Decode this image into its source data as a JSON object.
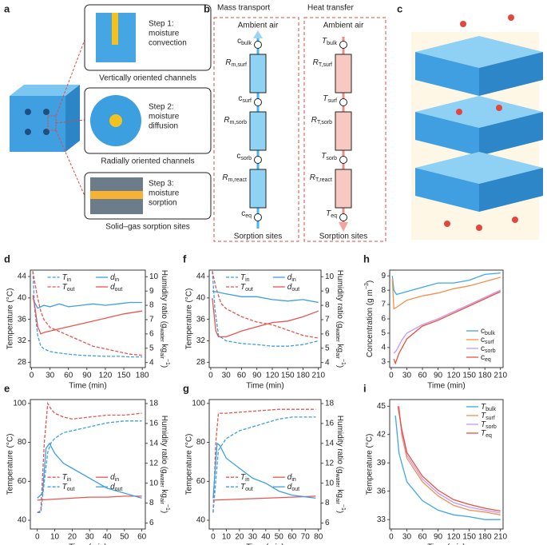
{
  "panels": [
    "a",
    "b",
    "c"
  ],
  "diagram_a": {
    "steps": [
      {
        "lines": [
          "Step 1:",
          "moisture",
          "convection"
        ],
        "caption": "Vertically oriented channels"
      },
      {
        "lines": [
          "Step 2:",
          "moisture",
          "diffusion"
        ],
        "caption": "Radially oriented channels"
      },
      {
        "lines": [
          "Step 3:",
          "moisture",
          "sorption"
        ],
        "caption": "Solid–gas sorption sites"
      }
    ]
  },
  "diagram_b": {
    "columns": [
      {
        "title": "Mass transport",
        "top": "Ambient air",
        "bottom": "Sorption sites",
        "nodes": [
          {
            "s": "c",
            "sub": "bulk"
          },
          {
            "s": "R",
            "sub": "m,surf"
          },
          {
            "s": "c",
            "sub": "surf"
          },
          {
            "s": "R",
            "sub": "m,sorb"
          },
          {
            "s": "c",
            "sub": "sorb"
          },
          {
            "s": "R",
            "sub": "m,react"
          },
          {
            "s": "c",
            "sub": "eq"
          }
        ]
      },
      {
        "title": "Heat transfer",
        "top": "Ambient air",
        "bottom": "Sorption sites",
        "nodes": [
          {
            "s": "T",
            "sub": "bulk"
          },
          {
            "s": "R",
            "sub": "T,surf"
          },
          {
            "s": "T",
            "sub": "surf"
          },
          {
            "s": "R",
            "sub": "T,sorb"
          },
          {
            "s": "T",
            "sub": "sorb"
          },
          {
            "s": "R",
            "sub": "T,react"
          },
          {
            "s": "T",
            "sub": "eq"
          }
        ]
      }
    ]
  },
  "chart_data": [
    {
      "panel": "d",
      "type": "line",
      "xlabel": "Time (min)",
      "ylabel": "Temperature (°C)",
      "y2label": [
        {
          "t": "Humidity ratio (g"
        },
        {
          "t": "water",
          "sub": true
        },
        {
          "t": " kg"
        },
        {
          "t": "air",
          "sub": true
        },
        {
          "t": "−1",
          "sup": true
        },
        {
          "t": ")"
        }
      ],
      "xlim": [
        -2,
        185
      ],
      "xticks": [
        0,
        30,
        60,
        90,
        120,
        150,
        180
      ],
      "ylim": [
        27,
        45.2
      ],
      "yticks": [
        28,
        32,
        36,
        40,
        44
      ],
      "y2lim": [
        3.65,
        10.46
      ],
      "y2ticks": [
        4,
        5,
        6,
        7,
        8,
        9,
        10
      ],
      "legend": "top",
      "series": [
        {
          "name": "T",
          "sub": "in",
          "color": "#3d9fe0",
          "dash": true,
          "x": [
            2,
            5,
            10,
            15,
            20,
            30,
            40,
            60,
            80,
            100,
            120,
            140,
            160,
            180
          ],
          "values": [
            45,
            38,
            33,
            31,
            30.5,
            30,
            29.8,
            29.5,
            29.3,
            29.2,
            29.1,
            29.1,
            29,
            29
          ]
        },
        {
          "name": "T",
          "sub": "out",
          "color": "#e8554f",
          "dash": true,
          "x": [
            2,
            5,
            10,
            15,
            20,
            30,
            40,
            50,
            60,
            80,
            100,
            120,
            140,
            160,
            180
          ],
          "values": [
            45,
            43,
            40,
            37.5,
            36,
            34.5,
            34,
            33.5,
            33,
            32,
            31,
            30.5,
            30,
            29.5,
            29.3
          ]
        },
        {
          "name": "d",
          "sub": "in",
          "color": "#3d9fe0",
          "axis": "y2",
          "x": [
            2,
            5,
            10,
            20,
            30,
            45,
            60,
            80,
            100,
            120,
            140,
            160,
            180
          ],
          "values": [
            8.5,
            8.2,
            7.8,
            8,
            7.9,
            8.1,
            7.9,
            8,
            8.1,
            8,
            8.1,
            8.2,
            8.2
          ]
        },
        {
          "name": "d",
          "sub": "out",
          "color": "#e8554f",
          "axis": "y2",
          "x": [
            2,
            5,
            10,
            15,
            20,
            30,
            60,
            90,
            120,
            150,
            180
          ],
          "values": [
            8.7,
            8,
            6.5,
            6,
            6.1,
            6.2,
            6.5,
            6.8,
            7.1,
            7.4,
            7.6
          ]
        }
      ]
    },
    {
      "panel": "e",
      "type": "line",
      "xlabel": "Time (min)",
      "ylabel": "Temperature (°C)",
      "y2label": [
        {
          "t": "Humidity ratio (g"
        },
        {
          "t": "water",
          "sub": true
        },
        {
          "t": " kg"
        },
        {
          "t": "air",
          "sub": true
        },
        {
          "t": "−1",
          "sup": true
        },
        {
          "t": ")"
        }
      ],
      "xlim": [
        -4,
        62
      ],
      "xticks": [
        0,
        10,
        20,
        30,
        40,
        50,
        60
      ],
      "ylim": [
        35.5,
        102
      ],
      "yticks": [
        40,
        60,
        80,
        100
      ],
      "y2lim": [
        5.4,
        18.4
      ],
      "y2ticks": [
        6,
        8,
        10,
        12,
        14,
        16,
        18
      ],
      "legend": "middle",
      "series": [
        {
          "name": "T",
          "sub": "in",
          "color": "#e8554f",
          "dash": true,
          "x": [
            0,
            2,
            4,
            6,
            8,
            10,
            15,
            20,
            30,
            40,
            50,
            60
          ],
          "values": [
            44,
            45,
            80,
            100,
            97,
            95,
            93,
            92,
            93,
            94,
            94,
            95
          ]
        },
        {
          "name": "T",
          "sub": "out",
          "color": "#3d9fe0",
          "dash": true,
          "x": [
            0,
            2,
            4,
            6,
            8,
            10,
            15,
            20,
            30,
            40,
            50,
            60
          ],
          "values": [
            44,
            44,
            60,
            75,
            80,
            82,
            85,
            86,
            88,
            90,
            91,
            91
          ]
        },
        {
          "name": "d",
          "sub": "in",
          "color": "#e8554f",
          "axis": "y2",
          "x": [
            0,
            10,
            20,
            30,
            40,
            50,
            60
          ],
          "values": [
            8.3,
            8.4,
            8.5,
            8.6,
            8.6,
            8.7,
            8.7
          ]
        },
        {
          "name": "d",
          "sub": "out",
          "color": "#3d9fe0",
          "axis": "y2",
          "x": [
            0,
            3,
            5,
            7,
            10,
            15,
            20,
            30,
            40,
            50,
            60
          ],
          "values": [
            8.5,
            9,
            13.5,
            14,
            13,
            12,
            11.5,
            10.5,
            9.5,
            9,
            8.5
          ]
        }
      ]
    },
    {
      "panel": "f",
      "type": "line",
      "xlabel": "Time (min)",
      "ylabel": "Temperature (°C)",
      "y2label": [
        {
          "t": "Humidity ratio (g"
        },
        {
          "t": "water",
          "sub": true
        },
        {
          "t": " kg"
        },
        {
          "t": "air",
          "sub": true
        },
        {
          "t": "−1",
          "sup": true
        },
        {
          "t": ")"
        }
      ],
      "xlim": [
        -3,
        215
      ],
      "xticks": [
        0,
        30,
        60,
        90,
        120,
        150,
        180,
        210
      ],
      "ylim": [
        27,
        45.2
      ],
      "yticks": [
        28,
        32,
        36,
        40,
        44
      ],
      "y2lim": [
        3.65,
        10.46
      ],
      "y2ticks": [
        4,
        5,
        6,
        7,
        8,
        9,
        10
      ],
      "legend": "top",
      "series": [
        {
          "name": "T",
          "sub": "in",
          "color": "#3d9fe0",
          "dash": true,
          "x": [
            3,
            8,
            15,
            30,
            60,
            90,
            120,
            150,
            180,
            210
          ],
          "values": [
            45,
            38,
            33,
            32,
            31.5,
            31.3,
            31,
            31,
            31.3,
            32
          ]
        },
        {
          "name": "T",
          "sub": "out",
          "color": "#e8554f",
          "dash": true,
          "x": [
            3,
            10,
            20,
            30,
            60,
            90,
            120,
            150,
            180,
            210
          ],
          "values": [
            45,
            42,
            39,
            38,
            36.5,
            35.5,
            35,
            34,
            33,
            32.5
          ]
        },
        {
          "name": "d",
          "sub": "in",
          "color": "#3d9fe0",
          "axis": "y2",
          "x": [
            3,
            30,
            60,
            90,
            120,
            150,
            180,
            210
          ],
          "values": [
            9,
            8.8,
            8.6,
            8.6,
            8.4,
            8.3,
            8.4,
            8.2
          ]
        },
        {
          "name": "d",
          "sub": "out",
          "color": "#e8554f",
          "axis": "y2",
          "x": [
            3,
            10,
            15,
            30,
            60,
            90,
            120,
            150,
            180,
            210
          ],
          "values": [
            8.5,
            6.2,
            5.8,
            5.8,
            6.2,
            6.5,
            6.8,
            6.9,
            7.2,
            7.6
          ]
        }
      ]
    },
    {
      "panel": "g",
      "type": "line",
      "xlabel": "Time (min)",
      "ylabel": "Temperature (°C)",
      "y2label": [
        {
          "t": "Humidity ratio (g"
        },
        {
          "t": "water",
          "sub": true
        },
        {
          "t": " kg"
        },
        {
          "t": "air",
          "sub": true
        },
        {
          "t": "−1",
          "sup": true
        },
        {
          "t": ")"
        }
      ],
      "xlim": [
        -3,
        82
      ],
      "xticks": [
        0,
        10,
        20,
        30,
        40,
        50,
        60,
        70,
        80
      ],
      "ylim": [
        35.5,
        102
      ],
      "yticks": [
        40,
        60,
        80,
        100
      ],
      "y2lim": [
        5.4,
        18.4
      ],
      "y2ticks": [
        6,
        8,
        10,
        12,
        14,
        16,
        18
      ],
      "legend": "middle",
      "series": [
        {
          "name": "T",
          "sub": "in",
          "color": "#e8554f",
          "dash": true,
          "x": [
            0,
            2,
            4,
            10,
            30,
            50,
            78
          ],
          "values": [
            44,
            80,
            95,
            95,
            96,
            97,
            97
          ]
        },
        {
          "name": "T",
          "sub": "out",
          "color": "#3d9fe0",
          "dash": true,
          "x": [
            0,
            2,
            4,
            10,
            20,
            30,
            40,
            50,
            60,
            78
          ],
          "values": [
            44,
            60,
            76,
            82,
            86,
            88,
            90,
            92,
            93,
            93
          ]
        },
        {
          "name": "d",
          "sub": "in",
          "color": "#e8554f",
          "axis": "y2",
          "x": [
            0,
            20,
            40,
            60,
            78
          ],
          "values": [
            8.3,
            8.4,
            8.5,
            8.6,
            8.7
          ]
        },
        {
          "name": "d",
          "sub": "out",
          "color": "#3d9fe0",
          "axis": "y2",
          "x": [
            0,
            3,
            5,
            10,
            20,
            30,
            40,
            50,
            60,
            78
          ],
          "values": [
            8.5,
            14,
            13.8,
            12.5,
            11.5,
            10.5,
            10,
            9.2,
            8.8,
            8.5
          ]
        }
      ]
    },
    {
      "panel": "h",
      "type": "line",
      "xlabel": "Time (min)",
      "ylabel": [
        {
          "t": "Concentration (g m"
        },
        {
          "t": "−3",
          "sup": true
        },
        {
          "t": ")"
        }
      ],
      "xlim": [
        -3,
        215
      ],
      "xticks": [
        0,
        30,
        60,
        90,
        120,
        150,
        180,
        210
      ],
      "ylim": [
        2.6,
        9.4
      ],
      "yticks": [
        3,
        4,
        5,
        6,
        7,
        8,
        9
      ],
      "legend": "lower right",
      "series": [
        {
          "name": "c",
          "sub": "bulk",
          "color": "#3ea8e6",
          "x": [
            2,
            5,
            10,
            30,
            60,
            90,
            120,
            150,
            180,
            210
          ],
          "values": [
            9,
            8,
            7.7,
            7.9,
            8.2,
            8.5,
            8.5,
            8.7,
            9.1,
            9.2
          ]
        },
        {
          "name": "c",
          "sub": "surf",
          "color": "#f5904a",
          "x": [
            2,
            5,
            10,
            30,
            60,
            90,
            120,
            150,
            180,
            210
          ],
          "values": [
            8.8,
            6.7,
            6.8,
            7.3,
            7.6,
            7.8,
            8.1,
            8.3,
            8.6,
            8.9
          ]
        },
        {
          "name": "c",
          "sub": "sorb",
          "color": "#c896f0",
          "x": [
            5,
            10,
            20,
            30,
            60,
            90,
            120,
            150,
            180,
            210
          ],
          "values": [
            3.6,
            3.8,
            4.5,
            5,
            5.6,
            6,
            6.5,
            7,
            7.5,
            8
          ]
        },
        {
          "name": "c",
          "sub": "eq",
          "color": "#e8503c",
          "x": [
            5,
            8,
            15,
            30,
            60,
            90,
            120,
            150,
            180,
            210
          ],
          "values": [
            3.2,
            2.9,
            3.6,
            4.6,
            5.5,
            5.9,
            6.4,
            6.9,
            7.4,
            7.9
          ]
        }
      ]
    },
    {
      "panel": "i",
      "type": "line",
      "xlabel": "Time (min)",
      "ylabel": "Temperature (°C)",
      "xlim": [
        -3,
        215
      ],
      "xticks": [
        0,
        30,
        60,
        90,
        120,
        150,
        180,
        210
      ],
      "ylim": [
        32,
        45.7
      ],
      "yticks": [
        33,
        36,
        39,
        42,
        45
      ],
      "legend": "upper right",
      "series": [
        {
          "name": "T",
          "sub": "bulk",
          "color": "#3ea8e6",
          "x": [
            8,
            15,
            30,
            60,
            90,
            120,
            150,
            180,
            210
          ],
          "values": [
            44,
            40,
            37,
            35,
            34,
            33.5,
            33.3,
            33,
            33
          ]
        },
        {
          "name": "T",
          "sub": "surf",
          "color": "#f5904a",
          "x": [
            15,
            20,
            30,
            60,
            90,
            120,
            150,
            180,
            210
          ],
          "values": [
            45,
            42,
            39.5,
            37,
            35.5,
            34.5,
            34,
            33.8,
            33.5
          ]
        },
        {
          "name": "T",
          "sub": "sorb",
          "color": "#c896f0",
          "x": [
            14,
            20,
            30,
            60,
            90,
            120,
            150,
            180,
            210
          ],
          "values": [
            45,
            42.3,
            39.8,
            37.3,
            35.8,
            34.8,
            34.3,
            34,
            33.7
          ]
        },
        {
          "name": "T",
          "sub": "eq",
          "color": "#e8503c",
          "x": [
            13,
            20,
            30,
            60,
            90,
            120,
            150,
            180,
            210
          ],
          "values": [
            45,
            42.6,
            40.1,
            37.6,
            36.1,
            35.1,
            34.6,
            34.2,
            33.9
          ]
        }
      ]
    }
  ]
}
